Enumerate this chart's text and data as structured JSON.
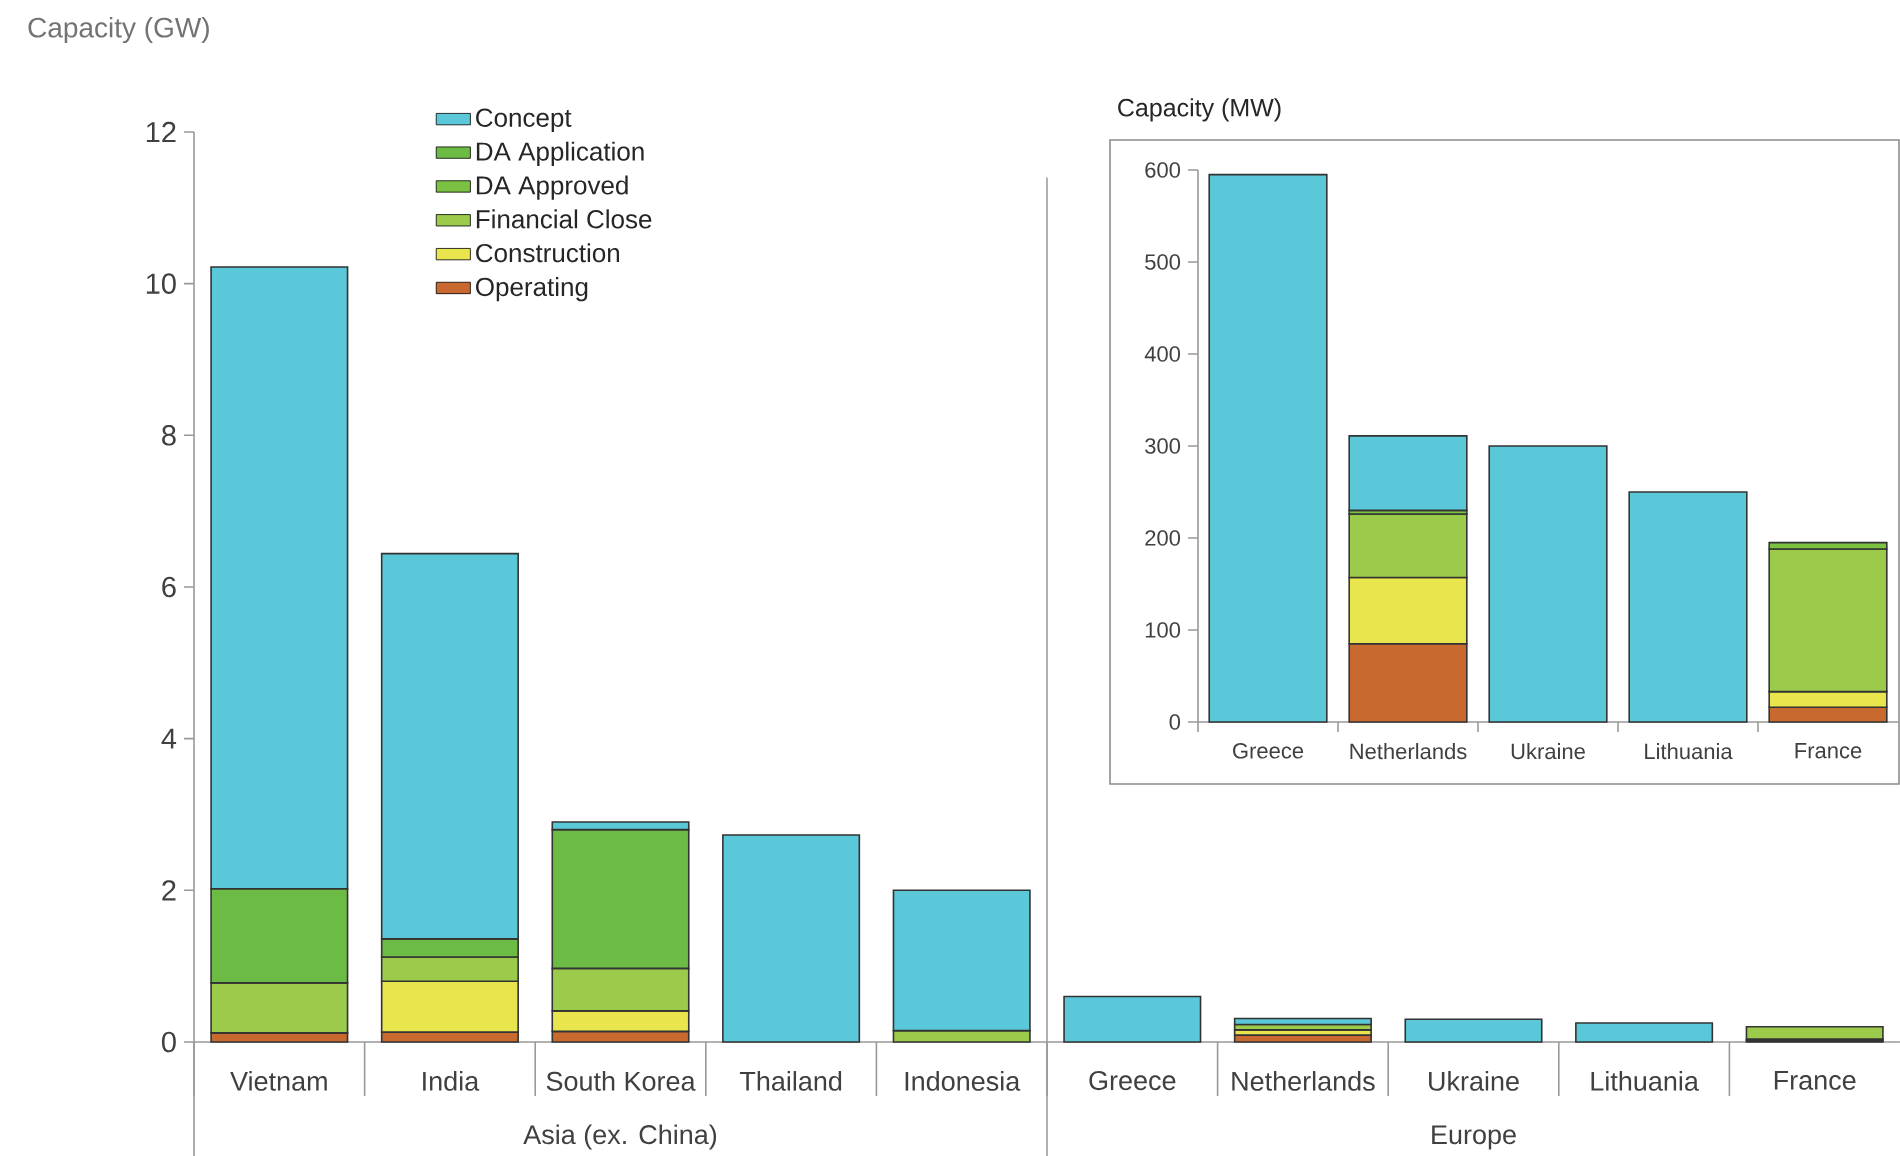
{
  "chart_data": [
    {
      "type": "bar",
      "stacked": true,
      "ylabel": "Capacity (GW)",
      "legend": "top left",
      "categories": [
        "Vietnam",
        "India",
        "South Korea",
        "Thailand",
        "Indonesia",
        "Greece",
        "Netherlands",
        "Ukraine",
        "Lithuania",
        "France"
      ],
      "annotations": [
        "Asia (ex. China)",
        "Europe"
      ],
      "ylim": [
        0,
        12
      ],
      "yticks": [
        0,
        2,
        4,
        6,
        8,
        10,
        12
      ],
      "series": [
        {
          "name": "Operating",
          "color": "#c8692f",
          "values": [
            0.12,
            0.13,
            0.14,
            null,
            null,
            null,
            0.09,
            null,
            null,
            0.02
          ]
        },
        {
          "name": "Construction",
          "color": "#e9e54c",
          "values": [
            null,
            0.67,
            0.27,
            null,
            null,
            null,
            0.07,
            null,
            null,
            0.02
          ]
        },
        {
          "name": "Financial Close",
          "color": "#9ccb4c",
          "values": [
            0.66,
            0.32,
            0.56,
            null,
            0.15,
            null,
            0.07,
            null,
            null,
            0.16
          ]
        },
        {
          "name": "DA Approved",
          "color": "#7cc242",
          "values": [
            null,
            null,
            null,
            null,
            null,
            null,
            null,
            null,
            null,
            null
          ]
        },
        {
          "name": "DA Application",
          "color": "#6cbb45",
          "values": [
            1.24,
            0.24,
            1.83,
            null,
            null,
            null,
            null,
            null,
            null,
            null
          ]
        },
        {
          "name": "Concept",
          "color": "#5bc8d9",
          "values": [
            8.2,
            5.08,
            0.1,
            2.73,
            1.85,
            0.6,
            0.08,
            0.3,
            0.25,
            null
          ]
        }
      ]
    },
    {
      "type": "bar",
      "stacked": true,
      "ylabel": "Capacity (MW)",
      "categories": [
        "Greece",
        "Netherlands",
        "Ukraine",
        "Lithuania",
        "France"
      ],
      "ylim": [
        0,
        600
      ],
      "yticks": [
        0,
        100,
        200,
        300,
        400,
        500,
        600
      ],
      "series": [
        {
          "color": "#c8692f",
          "values": [
            null,
            85,
            null,
            null,
            16
          ]
        },
        {
          "color": "#e9e54c",
          "values": [
            null,
            72,
            null,
            null,
            17
          ]
        },
        {
          "color": "#9ccb4c",
          "values": [
            null,
            69,
            null,
            null,
            155
          ]
        },
        {
          "color": "#7cc242",
          "values": [
            null,
            4,
            null,
            null,
            7
          ]
        },
        {
          "color": "#5bc8d9",
          "values": [
            595,
            81,
            300,
            250,
            null
          ]
        }
      ]
    }
  ]
}
